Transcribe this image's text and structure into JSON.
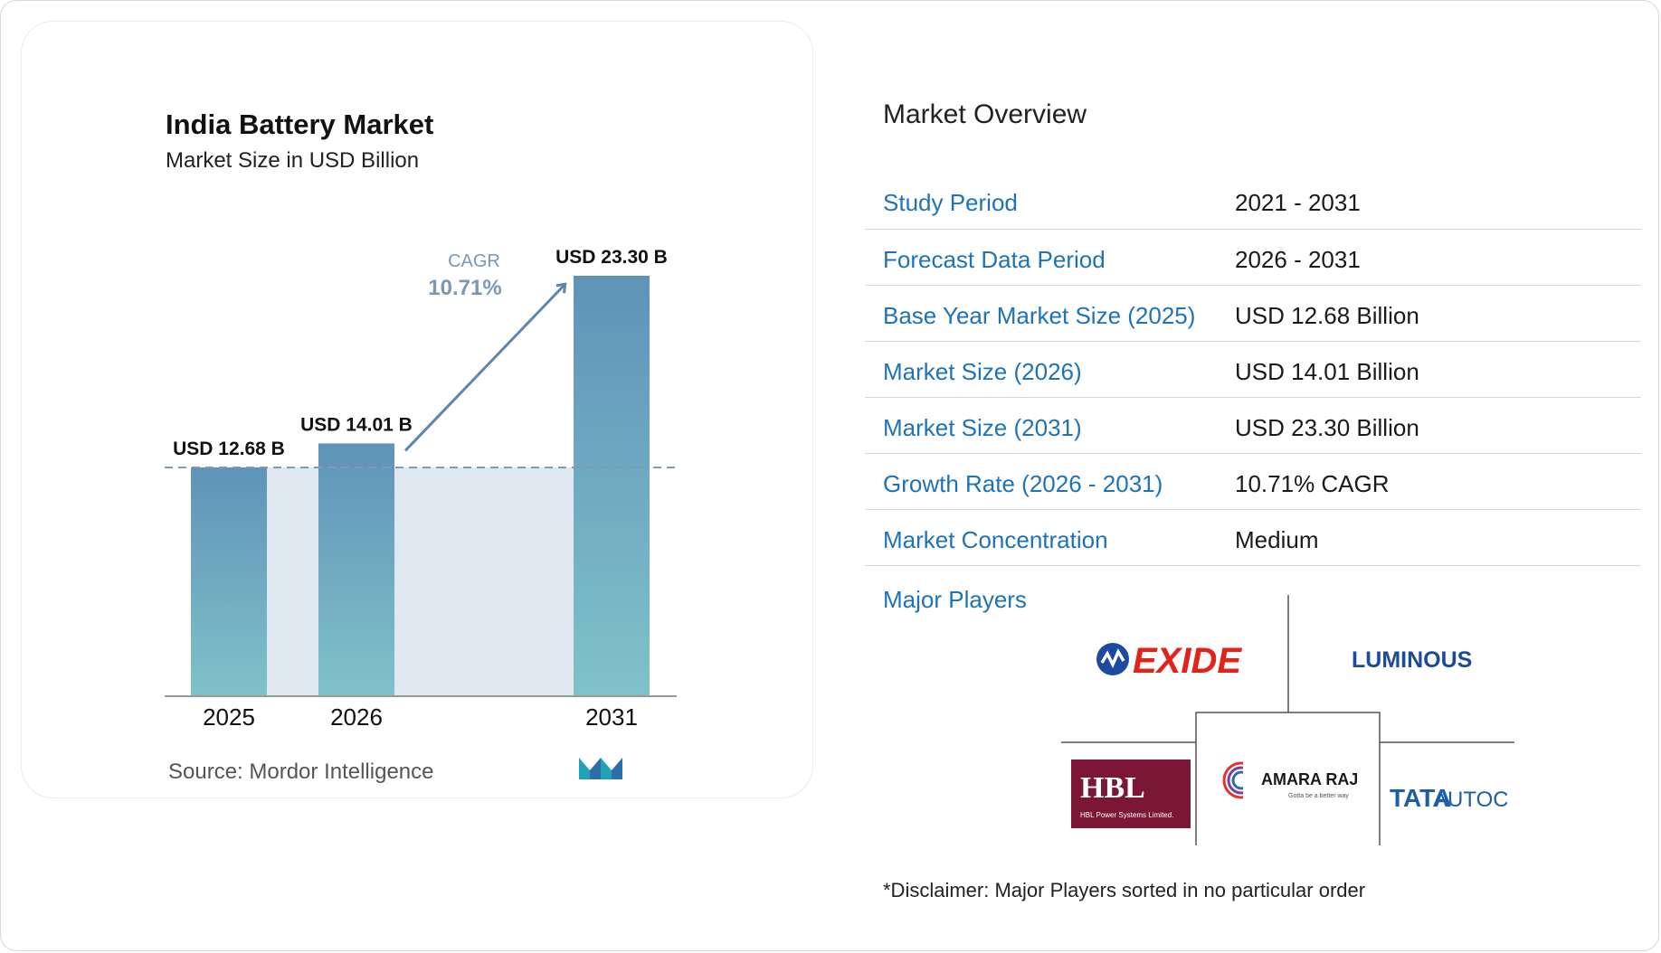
{
  "chart_data": {
    "type": "bar",
    "title": "India Battery Market",
    "subtitle": "Market Size in USD Billion",
    "categories": [
      "2025",
      "2026",
      "2031"
    ],
    "values": [
      12.68,
      14.01,
      23.3
    ],
    "data_labels": [
      "USD 12.68 B",
      "USD 14.01 B",
      "USD 23.30 B"
    ],
    "annotation": {
      "label": "CAGR",
      "value": "10.71%"
    },
    "colors": {
      "bar_top": "#5f93b8",
      "bar_bottom": "#7fc2c9",
      "shade": "#dfe8f1",
      "arrow": "#5b87ae"
    }
  },
  "source": "Source:  Mordor Intelligence",
  "overview": {
    "title": "Market Overview",
    "rows": [
      {
        "label": "Study Period",
        "value": "2021 - 2031"
      },
      {
        "label": "Forecast Data Period",
        "value": "2026 - 2031"
      },
      {
        "label": "Base Year Market Size (2025)",
        "value": "USD 12.68 Billion"
      },
      {
        "label": "Market Size (2026)",
        "value": "USD 14.01 Billion"
      },
      {
        "label": "Market Size (2031)",
        "value": "USD 23.30 Billion"
      },
      {
        "label": "Growth Rate (2026 - 2031)",
        "value": "10.71% CAGR"
      },
      {
        "label": "Market Concentration",
        "value": "Medium"
      }
    ]
  },
  "major_players": {
    "label": "Major Players",
    "logos": [
      {
        "name": "EXIDE",
        "icon": "exide-logo",
        "color": "#e2231a"
      },
      {
        "name": "LUMINOUS",
        "icon": "luminous-logo",
        "color": "#1b4aa0"
      },
      {
        "name": "HBL",
        "sub": "HBL Power Systems Limited.",
        "icon": "hbl-logo",
        "color": "#7b1636"
      },
      {
        "name": "AMARA RAJA",
        "sub": "Gotta be a better way",
        "icon": "amara-raja-logo"
      },
      {
        "name": "TATA",
        "name2": "AUTOCOMP",
        "icon": "tata-autocomp-logo",
        "color": "#1b5fa8"
      }
    ]
  },
  "disclaimer": "*Disclaimer: Major Players sorted in no particular order"
}
